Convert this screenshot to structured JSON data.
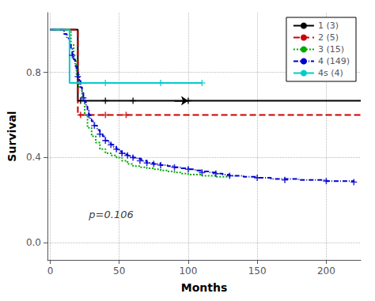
{
  "chart_data": {
    "type": "step",
    "xlabel": "Months",
    "ylabel": "Survival",
    "xlim": [
      -2,
      225
    ],
    "ylim": [
      -0.08,
      1.08
    ],
    "xticks": [
      0,
      50,
      100,
      150,
      200
    ],
    "yticks": [
      {
        "value": 0.0,
        "label": "0.0"
      },
      0.4,
      0.8
    ],
    "grid": true,
    "legend": "upper right",
    "series": [
      {
        "name": "1 (3)",
        "color": "#000000",
        "line_style": "solid",
        "marker": "plus",
        "x": [
          0,
          20,
          20,
          225
        ],
        "values": [
          1.0,
          1.0,
          0.667,
          0.667
        ],
        "censored_x": [
          22,
          40,
          60,
          100
        ],
        "censored_y": [
          0.667,
          0.667,
          0.667,
          0.667
        ]
      },
      {
        "name": "2 (5)",
        "color": "#cc0000",
        "line_style": "dashed",
        "marker": "plus",
        "x": [
          0,
          20,
          20,
          225
        ],
        "values": [
          1.0,
          1.0,
          0.6,
          0.6
        ],
        "censored_x": [
          22,
          40,
          55
        ],
        "censored_y": [
          0.6,
          0.6,
          0.6
        ]
      },
      {
        "name": "3 (15)",
        "color": "#00aa00",
        "line_style": "dotted",
        "x": [
          0,
          14,
          15,
          17,
          19,
          21,
          23,
          25,
          27,
          30,
          33,
          36,
          40,
          44,
          48,
          52,
          56,
          60,
          65,
          70,
          75,
          80,
          85,
          90,
          95,
          100,
          110,
          120,
          130
        ],
        "values": [
          1.0,
          1.0,
          0.93,
          0.86,
          0.79,
          0.73,
          0.67,
          0.6,
          0.54,
          0.5,
          0.47,
          0.44,
          0.42,
          0.41,
          0.4,
          0.385,
          0.37,
          0.36,
          0.355,
          0.35,
          0.345,
          0.34,
          0.335,
          0.33,
          0.325,
          0.32,
          0.315,
          0.31,
          0.31
        ]
      },
      {
        "name": "4 (149)",
        "color": "#0000cc",
        "line_style": "dashdot",
        "marker": "plus",
        "x": [
          0,
          10,
          12,
          14,
          15,
          16,
          17,
          18,
          19,
          20,
          21,
          22,
          23,
          24,
          25,
          26,
          27,
          28,
          29,
          30,
          32,
          34,
          36,
          38,
          40,
          42,
          44,
          46,
          48,
          50,
          52,
          54,
          56,
          58,
          60,
          63,
          66,
          70,
          75,
          80,
          85,
          90,
          95,
          100,
          105,
          110,
          115,
          120,
          125,
          130,
          140,
          150,
          160,
          180,
          200,
          220
        ],
        "values": [
          1.0,
          0.98,
          0.96,
          0.93,
          0.91,
          0.88,
          0.86,
          0.83,
          0.81,
          0.78,
          0.76,
          0.73,
          0.71,
          0.68,
          0.66,
          0.64,
          0.62,
          0.6,
          0.58,
          0.57,
          0.55,
          0.53,
          0.51,
          0.5,
          0.48,
          0.47,
          0.46,
          0.45,
          0.44,
          0.43,
          0.42,
          0.415,
          0.41,
          0.405,
          0.4,
          0.395,
          0.385,
          0.375,
          0.37,
          0.365,
          0.36,
          0.355,
          0.35,
          0.345,
          0.34,
          0.335,
          0.33,
          0.325,
          0.32,
          0.315,
          0.31,
          0.305,
          0.3,
          0.295,
          0.29,
          0.285
        ],
        "censored_x": [
          16,
          20,
          24,
          28,
          32,
          36,
          40,
          44,
          48,
          52,
          56,
          60,
          65,
          70,
          75,
          80,
          90,
          100,
          110,
          120,
          130,
          150,
          170,
          200,
          220
        ],
        "censored_y": [
          0.88,
          0.78,
          0.68,
          0.6,
          0.55,
          0.51,
          0.48,
          0.46,
          0.44,
          0.42,
          0.41,
          0.4,
          0.385,
          0.375,
          0.37,
          0.365,
          0.355,
          0.345,
          0.33,
          0.325,
          0.315,
          0.305,
          0.295,
          0.29,
          0.285
        ]
      },
      {
        "name": "4s (4)",
        "color": "#00cccc",
        "line_style": "solid",
        "marker": "plus",
        "x": [
          0,
          14,
          14,
          110
        ],
        "values": [
          1.0,
          1.0,
          0.75,
          0.75
        ],
        "censored_x": [
          40,
          80,
          110
        ],
        "censored_y": [
          0.75,
          0.75,
          0.75
        ]
      }
    ],
    "annotations": [
      {
        "text": "p=0.106",
        "x": 28,
        "y": 0.1
      },
      {
        "arrow_from": [
          90,
          0.667
        ],
        "arrow_to": [
          100,
          0.667
        ],
        "color": "#000000"
      }
    ]
  }
}
